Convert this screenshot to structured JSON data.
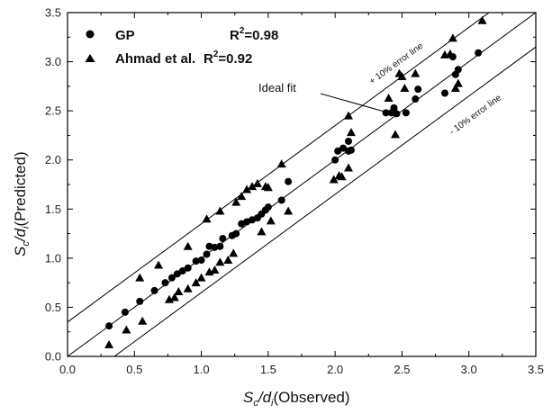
{
  "chart_data": {
    "type": "scatter",
    "x_axis": {
      "label_main": "S",
      "label_sub1": "c",
      "label_mid": "/d",
      "label_sub2": "i",
      "label_rest": "(Observed)",
      "range": [
        0.0,
        3.5
      ],
      "ticks": [
        "0.0",
        "0.5",
        "1.0",
        "1.5",
        "2.0",
        "2.5",
        "3.0",
        "3.5"
      ]
    },
    "y_axis": {
      "label_main": "S",
      "label_sub1": "c",
      "label_mid": "/d",
      "label_sub2": "i",
      "label_rest": "(Predicted)",
      "range": [
        0.0,
        3.5
      ],
      "ticks": [
        "0.0",
        "0.5",
        "1.0",
        "1.5",
        "2.0",
        "2.5",
        "3.0",
        "3.5"
      ]
    },
    "legend_position": "top-left",
    "series": [
      {
        "name": "GP",
        "r2_label": "R",
        "r2_sup": "2",
        "r2_value": "=0.98",
        "marker": "circle",
        "color": "#000000",
        "points": [
          [
            0.31,
            0.31
          ],
          [
            0.43,
            0.45
          ],
          [
            0.54,
            0.56
          ],
          [
            0.65,
            0.67
          ],
          [
            0.73,
            0.75
          ],
          [
            0.78,
            0.8
          ],
          [
            0.82,
            0.84
          ],
          [
            0.86,
            0.87
          ],
          [
            0.9,
            0.9
          ],
          [
            0.96,
            0.97
          ],
          [
            1.0,
            0.98
          ],
          [
            1.04,
            1.04
          ],
          [
            1.06,
            1.12
          ],
          [
            1.1,
            1.11
          ],
          [
            1.14,
            1.12
          ],
          [
            1.16,
            1.2
          ],
          [
            1.23,
            1.23
          ],
          [
            1.26,
            1.25
          ],
          [
            1.3,
            1.35
          ],
          [
            1.34,
            1.37
          ],
          [
            1.38,
            1.39
          ],
          [
            1.42,
            1.41
          ],
          [
            1.45,
            1.45
          ],
          [
            1.48,
            1.49
          ],
          [
            1.5,
            1.52
          ],
          [
            1.6,
            1.59
          ],
          [
            1.65,
            1.78
          ],
          [
            2.0,
            2.0
          ],
          [
            2.02,
            2.09
          ],
          [
            2.06,
            2.12
          ],
          [
            2.1,
            2.19
          ],
          [
            2.1,
            2.09
          ],
          [
            2.12,
            2.1
          ],
          [
            2.38,
            2.48
          ],
          [
            2.42,
            2.48
          ],
          [
            2.44,
            2.53
          ],
          [
            2.46,
            2.47
          ],
          [
            2.53,
            2.48
          ],
          [
            2.6,
            2.62
          ],
          [
            2.62,
            2.72
          ],
          [
            2.82,
            2.68
          ],
          [
            2.88,
            3.05
          ],
          [
            2.9,
            2.87
          ],
          [
            2.92,
            2.92
          ],
          [
            3.07,
            3.09
          ]
        ]
      },
      {
        "name": "Ahmad et al.",
        "r2_label": "R",
        "r2_sup": "2",
        "r2_value": "=0.92",
        "marker": "triangle",
        "color": "#000000",
        "points": [
          [
            0.31,
            0.12
          ],
          [
            0.44,
            0.27
          ],
          [
            0.54,
            0.8
          ],
          [
            0.56,
            0.36
          ],
          [
            0.68,
            0.93
          ],
          [
            0.76,
            0.58
          ],
          [
            0.8,
            0.6
          ],
          [
            0.83,
            0.66
          ],
          [
            0.9,
            0.69
          ],
          [
            0.9,
            1.12
          ],
          [
            0.96,
            0.75
          ],
          [
            1.0,
            0.8
          ],
          [
            1.04,
            1.4
          ],
          [
            1.06,
            0.86
          ],
          [
            1.1,
            0.88
          ],
          [
            1.14,
            0.96
          ],
          [
            1.14,
            1.48
          ],
          [
            1.2,
            0.98
          ],
          [
            1.24,
            1.05
          ],
          [
            1.26,
            1.57
          ],
          [
            1.3,
            1.63
          ],
          [
            1.34,
            1.7
          ],
          [
            1.38,
            1.73
          ],
          [
            1.42,
            1.76
          ],
          [
            1.45,
            1.27
          ],
          [
            1.48,
            1.73
          ],
          [
            1.5,
            1.72
          ],
          [
            1.52,
            1.38
          ],
          [
            1.6,
            1.96
          ],
          [
            1.65,
            1.48
          ],
          [
            1.99,
            1.8
          ],
          [
            2.03,
            1.84
          ],
          [
            2.05,
            1.83
          ],
          [
            2.1,
            1.92
          ],
          [
            2.1,
            2.45
          ],
          [
            2.12,
            2.28
          ],
          [
            2.4,
            2.63
          ],
          [
            2.45,
            2.26
          ],
          [
            2.48,
            2.88
          ],
          [
            2.5,
            2.85
          ],
          [
            2.52,
            2.73
          ],
          [
            2.6,
            2.88
          ],
          [
            2.82,
            3.07
          ],
          [
            2.86,
            3.08
          ],
          [
            2.88,
            3.24
          ],
          [
            2.9,
            2.73
          ],
          [
            2.92,
            2.78
          ],
          [
            3.1,
            3.42
          ]
        ]
      }
    ],
    "reference_lines": [
      {
        "name": "Ideal fit",
        "slope": 1.0,
        "intercept": 0.0
      },
      {
        "name": "+ 10% error line",
        "slope": 1.0,
        "intercept": 0.35
      },
      {
        "name": "- 10% error line",
        "slope": 1.0,
        "intercept": -0.35
      }
    ],
    "annotations": {
      "ideal_fit": "Ideal fit",
      "plus_error": "+ 10% error line",
      "minus_error": "- 10% error line"
    }
  }
}
